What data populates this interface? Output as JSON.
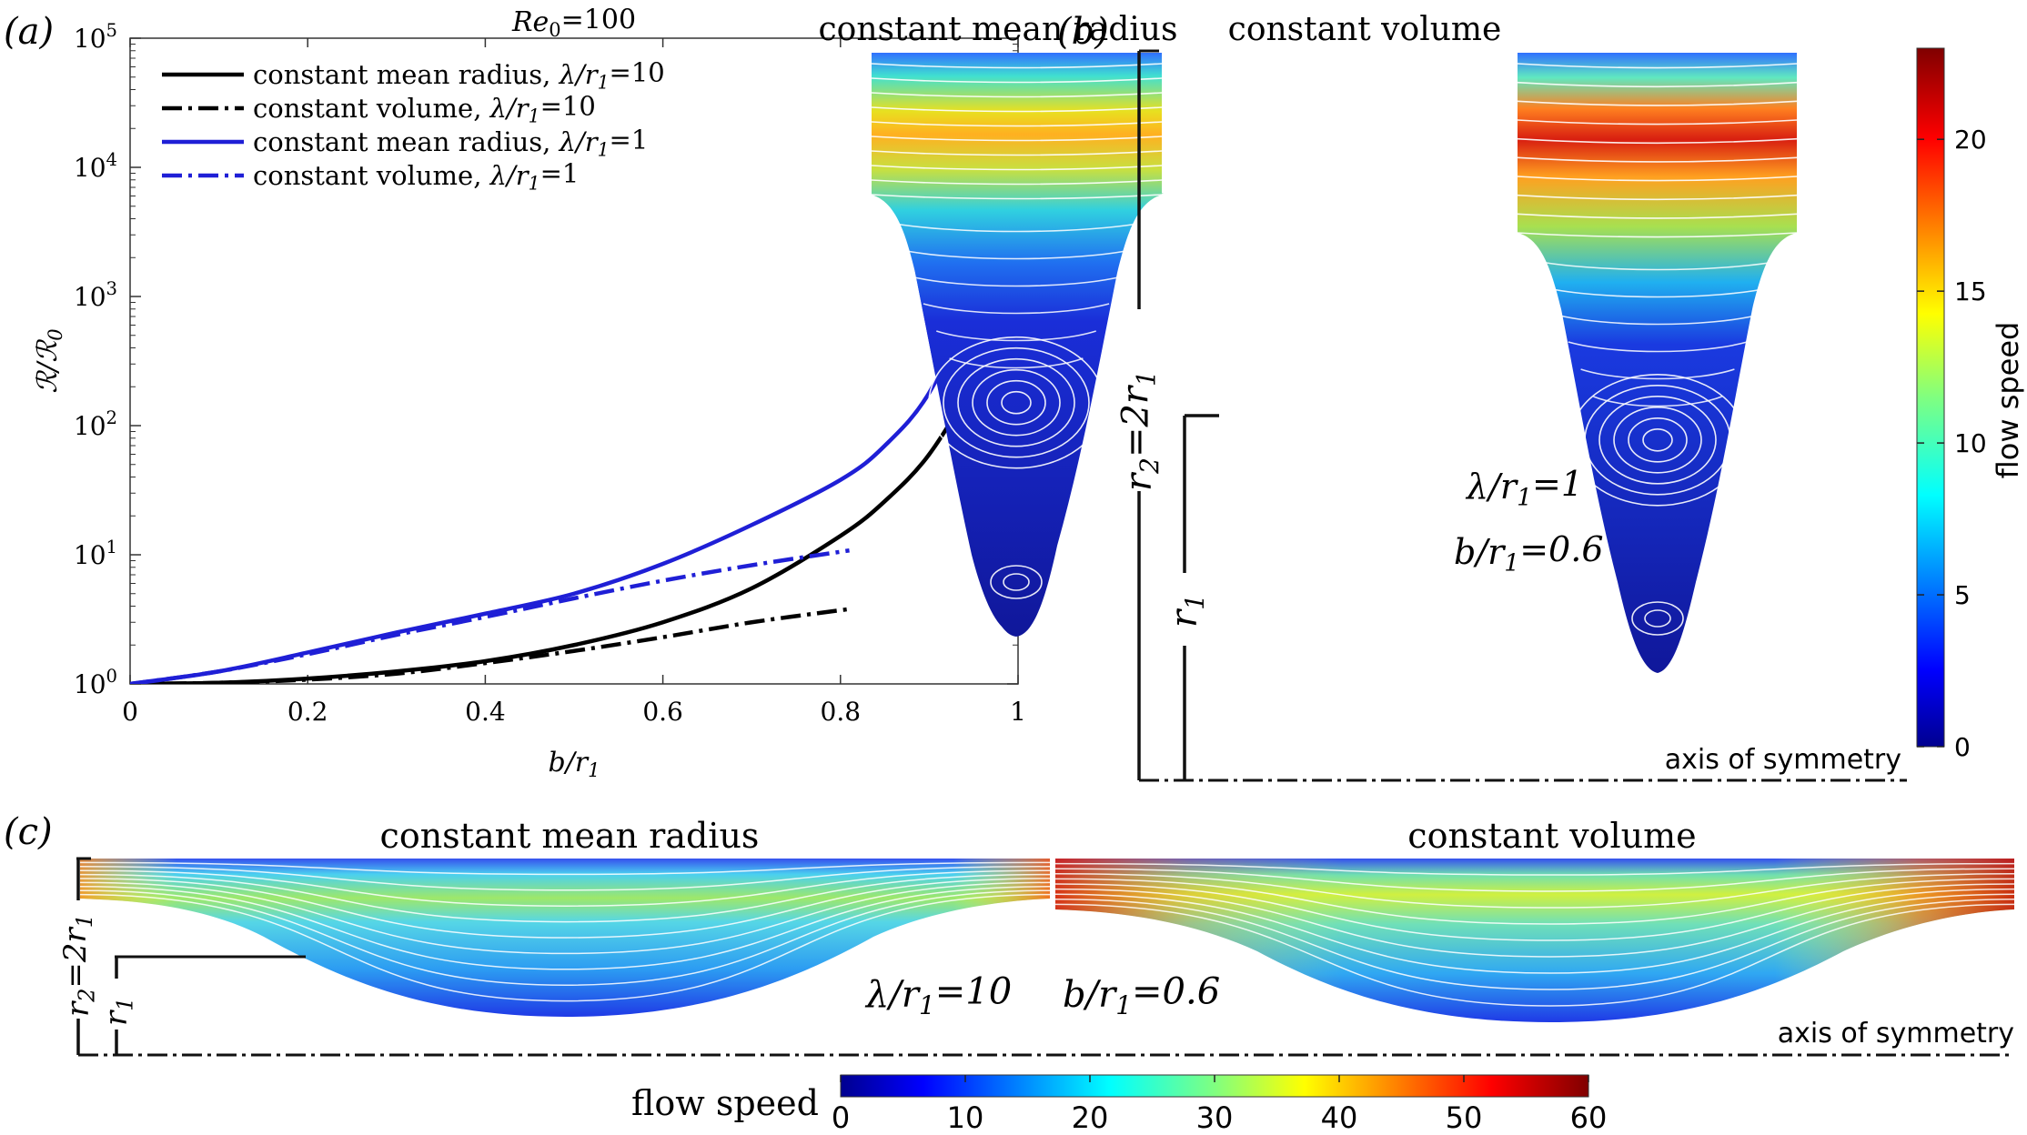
{
  "figure": {
    "panel_a_label": "(a)",
    "panel_b_label": "(b)",
    "panel_c_label": "(c)"
  },
  "chart_data": [
    {
      "type": "line",
      "panel": "(a)",
      "title": "Re0=100",
      "title_parts": [
        "Re",
        "0",
        "=100"
      ],
      "xlabel": "b/r1",
      "ylabel": "R/R0",
      "xlim": [
        0,
        1
      ],
      "ylim": [
        1,
        100000
      ],
      "yscale": "log",
      "xticks": [
        "0",
        "0.2",
        "0.4",
        "0.6",
        "0.8",
        "1"
      ],
      "xtick_values": [
        0,
        0.2,
        0.4,
        0.6,
        0.8,
        1
      ],
      "yticks": [
        "10^0",
        "10^1",
        "10^2",
        "10^3",
        "10^4",
        "10^5"
      ],
      "ytick_exponents": [
        0,
        1,
        2,
        3,
        4,
        5
      ],
      "legend_position": "top-left",
      "series": [
        {
          "name": "constant mean radius, λ/r1=10",
          "name_parts": [
            "constant mean radius, ",
            "λ/r",
            "1",
            "=10"
          ],
          "color": "#000000",
          "dash": "solid",
          "x": [
            0,
            0.1,
            0.2,
            0.3,
            0.4,
            0.5,
            0.6,
            0.7,
            0.8,
            0.85,
            0.9,
            0.95,
            0.97,
            0.99
          ],
          "y": [
            1,
            1.02,
            1.1,
            1.25,
            1.5,
            2.0,
            3.0,
            5.5,
            14,
            26,
            60,
            220,
            500,
            1500
          ]
        },
        {
          "name": "constant volume, λ/r1=10",
          "name_parts": [
            "constant volume, ",
            "λ/r",
            "1",
            "=10"
          ],
          "color": "#000000",
          "dash": "dashdot",
          "x": [
            0,
            0.1,
            0.2,
            0.3,
            0.4,
            0.5,
            0.6,
            0.7,
            0.81
          ],
          "y": [
            1,
            1.02,
            1.08,
            1.2,
            1.45,
            1.8,
            2.3,
            3.0,
            3.8
          ]
        },
        {
          "name": "constant mean radius, λ/r1=1",
          "name_parts": [
            "constant mean radius, ",
            "λ/r",
            "1",
            "=1"
          ],
          "color": "#1f1fd6",
          "dash": "solid",
          "x": [
            0,
            0.1,
            0.2,
            0.3,
            0.4,
            0.5,
            0.6,
            0.7,
            0.8,
            0.85,
            0.9,
            0.95,
            0.97,
            0.99
          ],
          "y": [
            1,
            1.25,
            1.75,
            2.5,
            3.5,
            5.0,
            8.5,
            17,
            38,
            70,
            180,
            1000,
            3000,
            22000
          ]
        },
        {
          "name": "constant volume, λ/r1=1",
          "name_parts": [
            "constant volume, ",
            "λ/r",
            "1",
            "=1"
          ],
          "color": "#1f1fd6",
          "dash": "dashdot",
          "x": [
            0,
            0.1,
            0.2,
            0.3,
            0.4,
            0.5,
            0.6,
            0.7,
            0.81
          ],
          "y": [
            1,
            1.25,
            1.7,
            2.4,
            3.3,
            4.6,
            6.3,
            8.3,
            10.8
          ]
        }
      ]
    },
    {
      "type": "heatmap",
      "panel": "(b)",
      "titles": [
        "constant mean radius",
        "constant volume"
      ],
      "colorbar_label": "flow speed",
      "colorbar_ticks": [
        "0",
        "5",
        "10",
        "15",
        "20"
      ],
      "colorbar_tick_values": [
        0,
        5,
        10,
        15,
        20
      ],
      "colorbar_range": [
        0,
        23
      ],
      "annotation_parts": [
        "λ/r",
        "1",
        "=1"
      ],
      "annotation2_parts": [
        "b/r",
        "1",
        "=0.6"
      ],
      "r2_label_parts": [
        "r",
        "2",
        "=2r",
        "1"
      ],
      "r1_label_parts": [
        "r",
        "1"
      ],
      "axis_label": "axis of symmetry"
    },
    {
      "type": "heatmap",
      "panel": "(c)",
      "titles": [
        "constant mean radius",
        "constant volume"
      ],
      "colorbar_label": "flow speed",
      "colorbar_ticks": [
        "0",
        "10",
        "20",
        "30",
        "40",
        "50",
        "60"
      ],
      "colorbar_tick_values": [
        0,
        10,
        20,
        30,
        40,
        50,
        60
      ],
      "colorbar_range": [
        0,
        60
      ],
      "annotation_parts": [
        "λ/r",
        "1",
        "=10"
      ],
      "annotation2_parts": [
        "b/r",
        "1",
        "=0.6"
      ],
      "r2_label_parts": [
        "r",
        "2",
        "=2r",
        "1"
      ],
      "r1_label_parts": [
        "r",
        "1"
      ],
      "axis_label": "axis of symmetry"
    }
  ]
}
